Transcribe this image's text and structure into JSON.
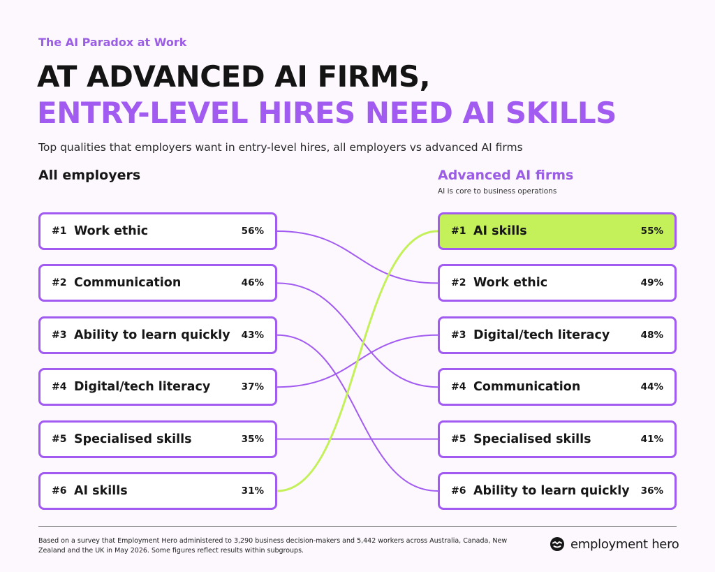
{
  "eyebrow": "The AI Paradox at Work",
  "headline": {
    "line1": "AT ADVANCED AI FIRMS,",
    "line2": "ENTRY-LEVEL HIRES NEED AI SKILLS"
  },
  "subtitle": "Top qualities that employers want in entry-level hires, all employers vs advanced AI firms",
  "footnote": "Based on a survey that Employment Hero administered to 3,290 business decision-makers and 5,442 workers across Australia, Canada, New Zealand and the UK in May 2026. Some figures reflect results within subgroups.",
  "brand": {
    "name": "employment hero",
    "icon": "employment-hero-logo-icon"
  },
  "colors": {
    "purple": "#a25bf0",
    "highlight": "#c4f05a",
    "text": "#161616"
  },
  "chart_data": {
    "type": "slope",
    "title": "AT ADVANCED AI FIRMS, ENTRY-LEVEL HIRES NEED AI SKILLS",
    "left": {
      "title": "All employers",
      "items": [
        {
          "rank": "#1",
          "label": "Work ethic",
          "value": 56,
          "value_label": "56%"
        },
        {
          "rank": "#2",
          "label": "Communication",
          "value": 46,
          "value_label": "46%"
        },
        {
          "rank": "#3",
          "label": "Ability to learn quickly",
          "value": 43,
          "value_label": "43%"
        },
        {
          "rank": "#4",
          "label": "Digital/tech literacy",
          "value": 37,
          "value_label": "37%"
        },
        {
          "rank": "#5",
          "label": "Specialised skills",
          "value": 35,
          "value_label": "35%"
        },
        {
          "rank": "#6",
          "label": "AI skills",
          "value": 31,
          "value_label": "31%"
        }
      ]
    },
    "right": {
      "title": "Advanced AI firms",
      "subtitle": "AI is core to business operations",
      "items": [
        {
          "rank": "#1",
          "label": "AI skills",
          "value": 55,
          "value_label": "55%"
        },
        {
          "rank": "#2",
          "label": "Work ethic",
          "value": 49,
          "value_label": "49%"
        },
        {
          "rank": "#3",
          "label": "Digital/tech literacy",
          "value": 48,
          "value_label": "48%"
        },
        {
          "rank": "#4",
          "label": "Communication",
          "value": 44,
          "value_label": "44%"
        },
        {
          "rank": "#5",
          "label": "Specialised skills",
          "value": 41,
          "value_label": "41%"
        },
        {
          "rank": "#6",
          "label": "Ability to learn quickly",
          "value": 36,
          "value_label": "36%"
        }
      ]
    },
    "highlighted_item": "AI skills"
  }
}
